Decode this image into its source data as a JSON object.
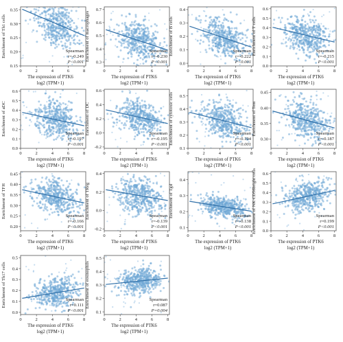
{
  "x_axis": {
    "label_line1": "The expression of PTK6",
    "label_line2": "log2 (TPM+1)",
    "ticks": [
      0,
      2,
      4,
      6,
      8
    ]
  },
  "method": "Spearman",
  "point_color": "#6fa8d6",
  "line_color": "#2f6fa8",
  "chart_data": [
    {
      "type": "scatter",
      "ylabel": "Enrichment of Th1 cells",
      "ylim": [
        0.15,
        0.36
      ],
      "yticks": [
        0.15,
        0.2,
        0.25,
        0.3,
        0.35
      ],
      "r_text": "r=-0.249",
      "p_text": "P<0.001",
      "center": [
        4.5,
        0.3
      ],
      "slope": -0.012,
      "spread": [
        1.4,
        0.04
      ]
    },
    {
      "type": "scatter",
      "ylabel": "Enrichment of macrophages",
      "ylim": [
        0.27,
        0.72
      ],
      "yticks": [
        0.3,
        0.4,
        0.5,
        0.6,
        0.7
      ],
      "r_text": "r=-0.230",
      "p_text": "P<0.001",
      "center": [
        4.5,
        0.46
      ],
      "slope": -0.02,
      "spread": [
        1.4,
        0.08
      ]
    },
    {
      "type": "scatter",
      "ylabel": "Enrichment of B cells",
      "ylim": [
        -0.02,
        0.42
      ],
      "yticks": [
        0.0,
        0.1,
        0.2,
        0.3,
        0.4
      ],
      "r_text": "r=-0.222",
      "p_text": "P<0.001",
      "center": [
        4.5,
        0.19
      ],
      "slope": -0.02,
      "spread": [
        1.4,
        0.07
      ]
    },
    {
      "type": "scatter",
      "ylabel": "Enrichment of T cells",
      "ylim": [
        0.0,
        0.62
      ],
      "yticks": [
        0.0,
        0.1,
        0.2,
        0.3,
        0.4,
        0.5,
        0.6
      ],
      "r_text": "r=-0.215",
      "p_text": "P<0.001",
      "center": [
        4.5,
        0.32
      ],
      "slope": -0.02,
      "spread": [
        1.4,
        0.1
      ]
    },
    {
      "type": "scatter",
      "ylabel": "Enrichment of aDC",
      "ylim": [
        0.0,
        0.62
      ],
      "yticks": [
        0.0,
        0.1,
        0.2,
        0.3,
        0.4,
        0.5,
        0.6
      ],
      "r_text": "r=-0.197",
      "p_text": "P<0.001",
      "center": [
        4.5,
        0.3
      ],
      "slope": -0.018,
      "spread": [
        1.4,
        0.1
      ]
    },
    {
      "type": "scatter",
      "ylabel": "Enrichment of DC",
      "ylim": [
        -0.22,
        0.62
      ],
      "yticks": [
        -0.2,
        0.0,
        0.2,
        0.4,
        0.6
      ],
      "r_text": "r=-0.195",
      "p_text": "P<0.001",
      "center": [
        4.5,
        0.22
      ],
      "slope": -0.025,
      "spread": [
        1.4,
        0.12
      ]
    },
    {
      "type": "scatter",
      "ylabel": "Enrichment of cytotoxic cells",
      "ylim": [
        0.1,
        0.55
      ],
      "yticks": [
        0.1,
        0.2,
        0.3,
        0.4,
        0.5
      ],
      "r_text": "r=-0.194",
      "p_text": "P<0.001",
      "center": [
        4.5,
        0.31
      ],
      "slope": -0.015,
      "spread": [
        1.4,
        0.07
      ]
    },
    {
      "type": "scatter",
      "ylabel": "Enrichment of Tem",
      "ylim": [
        0.27,
        0.46
      ],
      "yticks": [
        0.3,
        0.35,
        0.4,
        0.45
      ],
      "r_text": "r=-0.187",
      "p_text": "P<0.001",
      "center": [
        4.5,
        0.36
      ],
      "slope": -0.007,
      "spread": [
        1.4,
        0.03
      ]
    },
    {
      "type": "scatter",
      "ylabel": "Enrichment of TFH",
      "ylim": [
        0.18,
        0.46
      ],
      "yticks": [
        0.2,
        0.25,
        0.3,
        0.35,
        0.4,
        0.45
      ],
      "r_text": "r=-0.166",
      "p_text": "P<0.001",
      "center": [
        4.5,
        0.34
      ],
      "slope": -0.008,
      "spread": [
        1.4,
        0.04
      ]
    },
    {
      "type": "scatter",
      "ylabel": "Enrichment of TReg",
      "ylim": [
        -0.22,
        0.42
      ],
      "yticks": [
        -0.2,
        0.0,
        0.2,
        0.4
      ],
      "r_text": "r=-0.139",
      "p_text": "P<0.001",
      "center": [
        4.5,
        0.16
      ],
      "slope": -0.015,
      "spread": [
        1.4,
        0.1
      ]
    },
    {
      "type": "scatter",
      "ylabel": "Enrichment of Tgd",
      "ylim": [
        0.08,
        0.45
      ],
      "yticks": [
        0.1,
        0.2,
        0.3,
        0.4
      ],
      "r_text": "r=-0.138",
      "p_text": "P<0.001",
      "center": [
        4.5,
        0.23
      ],
      "slope": -0.008,
      "spread": [
        1.4,
        0.03
      ]
    },
    {
      "type": "scatter",
      "ylabel": "Enrichment of NK CD56bright cells",
      "ylim": [
        0.0,
        0.62
      ],
      "yticks": [
        0.0,
        0.1,
        0.2,
        0.3,
        0.4,
        0.5,
        0.6
      ],
      "r_text": "r=0.199",
      "p_text": "P<0.001",
      "center": [
        4.5,
        0.36
      ],
      "slope": 0.018,
      "spread": [
        1.4,
        0.08
      ]
    },
    {
      "type": "scatter",
      "ylabel": "Enrichment of Th17 cells",
      "ylim": [
        -0.02,
        0.52
      ],
      "yticks": [
        0.0,
        0.1,
        0.2,
        0.3,
        0.4,
        0.5
      ],
      "r_text": "r=0.111",
      "p_text": "P<0.001",
      "center": [
        4.5,
        0.18
      ],
      "slope": 0.012,
      "spread": [
        1.4,
        0.07
      ]
    },
    {
      "type": "scatter",
      "ylabel": "Enrichment of eosinophils",
      "ylim": [
        0.08,
        0.52
      ],
      "yticks": [
        0.1,
        0.2,
        0.3,
        0.4,
        0.5
      ],
      "r_text": "r=0.087",
      "p_text": "P=0.004",
      "center": [
        4.5,
        0.33
      ],
      "slope": 0.006,
      "spread": [
        1.4,
        0.05
      ]
    }
  ]
}
